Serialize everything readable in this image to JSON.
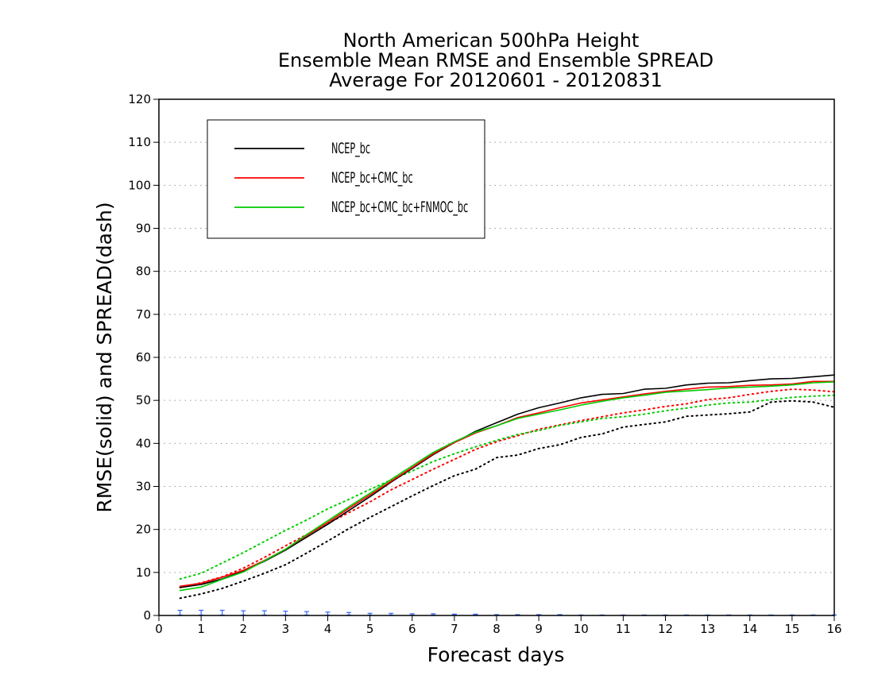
{
  "chart_data": {
    "type": "line",
    "title": [
      "North American 500hPa Height",
      "Ensemble Mean RMSE and Ensemble SPREAD",
      "Average For 20120601 - 20120831"
    ],
    "xlabel": "Forecast days",
    "ylabel": "RMSE(solid) and SPREAD(dash)",
    "xlim": [
      0,
      16
    ],
    "ylim": [
      0,
      120
    ],
    "xticks": [
      0,
      1,
      2,
      3,
      4,
      5,
      6,
      7,
      8,
      9,
      10,
      11,
      12,
      13,
      14,
      15,
      16
    ],
    "yticks": [
      0,
      10,
      20,
      30,
      40,
      50,
      60,
      70,
      80,
      90,
      100,
      110,
      120
    ],
    "grid": "horizontal dotted",
    "legend_position": "top-left",
    "x": [
      0.5,
      1,
      1.5,
      2,
      2.5,
      3,
      3.5,
      4,
      4.5,
      5,
      5.5,
      6,
      6.5,
      7,
      7.5,
      8,
      8.5,
      9,
      9.5,
      10,
      10.5,
      11,
      11.5,
      12,
      12.5,
      13,
      13.5,
      14,
      14.5,
      15,
      15.5,
      16
    ],
    "series": [
      {
        "name": "NCEP_bc",
        "color": "#000000",
        "style": "solid",
        "values": [
          6.5,
          7.2,
          8.5,
          10.3,
          12.6,
          15.2,
          18.2,
          21.2,
          24.4,
          27.6,
          31.0,
          34.2,
          37.4,
          40.2,
          42.8,
          44.8,
          46.8,
          48.3,
          49.4,
          50.6,
          51.4,
          51.6,
          52.6,
          52.8,
          53.6,
          54.0,
          54.1,
          54.6,
          55.0,
          55.1,
          55.5,
          55.9
        ]
      },
      {
        "name": "NCEP_bc+CMC_bc",
        "color": "#ff0000",
        "style": "solid",
        "values": [
          6.8,
          7.5,
          8.9,
          10.5,
          12.8,
          15.4,
          18.6,
          21.6,
          24.9,
          28.0,
          31.2,
          34.4,
          37.6,
          40.2,
          42.4,
          44.1,
          46.0,
          47.1,
          48.3,
          49.4,
          50.1,
          50.8,
          51.5,
          52.1,
          52.6,
          53.1,
          53.2,
          53.5,
          53.6,
          53.8,
          54.4,
          54.4
        ]
      },
      {
        "name": "NCEP_bc+CMC_bc+FNMOC_bc",
        "color": "#00cc00",
        "style": "solid",
        "values": [
          5.8,
          6.6,
          8.4,
          10.1,
          12.7,
          15.4,
          18.8,
          22.0,
          25.3,
          28.4,
          31.6,
          34.8,
          37.9,
          40.4,
          42.6,
          44.1,
          45.8,
          46.8,
          47.8,
          48.9,
          49.8,
          50.6,
          51.2,
          51.9,
          52.2,
          52.5,
          52.9,
          53.1,
          53.3,
          53.6,
          54.1,
          54.3
        ]
      },
      {
        "name": "NCEP_bc",
        "color": "#000000",
        "style": "dotted",
        "values": [
          4.0,
          5.0,
          6.3,
          8.0,
          9.8,
          11.8,
          14.5,
          17.3,
          20.2,
          22.8,
          25.3,
          27.8,
          30.2,
          32.5,
          34.0,
          36.7,
          37.3,
          38.8,
          39.7,
          41.4,
          42.2,
          43.8,
          44.4,
          45.0,
          46.3,
          46.6,
          46.9,
          47.3,
          49.6,
          49.9,
          49.6,
          48.4
        ]
      },
      {
        "name": "NCEP_bc+CMC_bc",
        "color": "#ff0000",
        "style": "dotted",
        "values": [
          6.5,
          7.6,
          9.0,
          11.0,
          13.5,
          16.2,
          18.8,
          21.4,
          23.9,
          26.4,
          29.2,
          31.6,
          34.0,
          36.3,
          38.6,
          40.4,
          41.8,
          43.3,
          44.3,
          45.3,
          46.2,
          47.1,
          47.8,
          48.6,
          49.2,
          50.2,
          50.6,
          51.4,
          52.1,
          52.6,
          52.4,
          52.0
        ]
      },
      {
        "name": "NCEP_bc+CMC_bc+FNMOC_bc",
        "color": "#00cc00",
        "style": "dotted",
        "values": [
          8.5,
          9.8,
          12.2,
          14.6,
          17.2,
          19.8,
          22.2,
          24.8,
          27.0,
          29.3,
          31.5,
          33.6,
          35.8,
          37.6,
          39.2,
          40.7,
          42.1,
          43.0,
          44.2,
          45.0,
          45.8,
          46.2,
          46.8,
          47.6,
          48.2,
          48.9,
          49.4,
          49.6,
          50.2,
          50.7,
          51.0,
          51.2
        ]
      },
      {
        "name": "",
        "color": "#3366ff",
        "style": "errorbar",
        "values": [
          1.2,
          1.2,
          1.2,
          1.1,
          1.1,
          1.0,
          0.9,
          0.8,
          0.7,
          0.5,
          0.5,
          0.4,
          0.4,
          0.3,
          0.3,
          0.2,
          0.2,
          0.2,
          0.2,
          0.1,
          0.1,
          0.1,
          0.1,
          0.1,
          0.1,
          0.1,
          0.1,
          0.1,
          0.1,
          0.1,
          0.1,
          0.1
        ]
      }
    ],
    "legend": [
      {
        "label": "NCEP_bc",
        "color": "#000000"
      },
      {
        "label": "NCEP_bc+CMC_bc",
        "color": "#ff0000"
      },
      {
        "label": "NCEP_bc+CMC_bc+FNMOC_bc",
        "color": "#00cc00"
      }
    ]
  }
}
